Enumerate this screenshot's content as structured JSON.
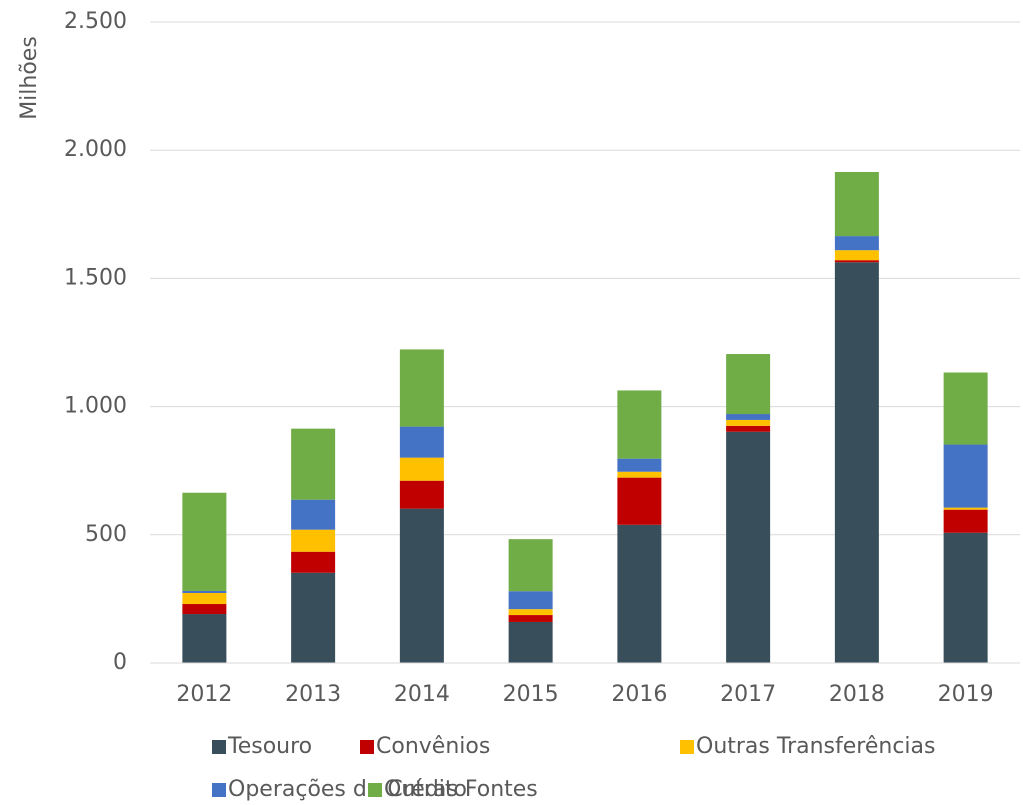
{
  "chart_data": {
    "type": "bar",
    "stacked": true,
    "ylabel": "Milhões",
    "categories": [
      "2012",
      "2013",
      "2014",
      "2015",
      "2016",
      "2017",
      "2018",
      "2019"
    ],
    "series": [
      {
        "name": "Tesouro",
        "color": "#384f5b",
        "values": [
          191,
          352,
          602,
          160,
          539,
          902,
          1563,
          508
        ]
      },
      {
        "name": "Convênios",
        "color": "#c00000",
        "values": [
          39,
          82,
          109,
          27,
          184,
          23,
          8,
          90
        ]
      },
      {
        "name": "Outras Transferências",
        "color": "#ffc000",
        "values": [
          43,
          86,
          90,
          23,
          23,
          23,
          39,
          8
        ]
      },
      {
        "name": "Operações de Crédito",
        "color": "#4472c4",
        "values": [
          8,
          117,
          121,
          70,
          51,
          23,
          55,
          246
        ]
      },
      {
        "name": "Outras Fontes",
        "color": "#70ad47",
        "values": [
          383,
          277,
          301,
          203,
          266,
          234,
          250,
          281
        ]
      }
    ],
    "ylim": [
      0,
      2500
    ],
    "yticks": [
      0,
      500,
      {
        "value": 1000,
        "label": "1.000"
      },
      {
        "value": 1500,
        "label": "1.500"
      },
      {
        "value": 2000,
        "label": "2.000"
      },
      {
        "value": 2500,
        "label": "2.500"
      }
    ],
    "grid": true
  }
}
